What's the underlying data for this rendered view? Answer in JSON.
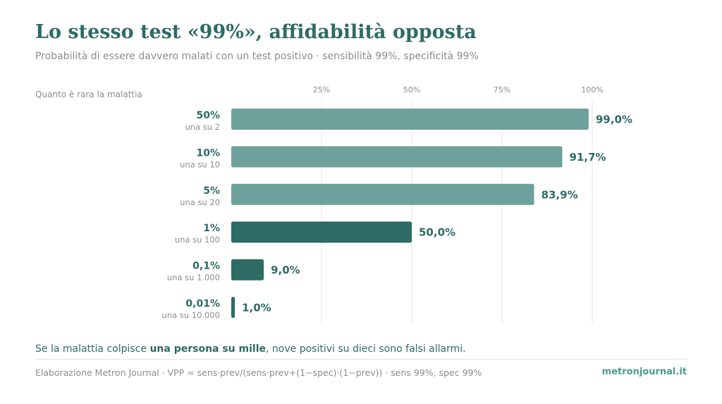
{
  "title": "Lo stesso test «99%», affidabilità opposta",
  "subtitle": "Probabilità di essere davvero malati con un test positivo · sensibilità 99%, specificità 99%",
  "callout": {
    "prefix": "Se la malattia colpisce ",
    "emphasis": "una persona su mille",
    "suffix": ", nove positivi su dieci sono falsi allarmi."
  },
  "footer": {
    "note": "Elaborazione Metron Journal · VPP = sens·prev/(sens·prev+(1−spec)·(1−prev)) · sens 99%, spec 99%",
    "brand": "metronjournal.it"
  },
  "colors": {
    "light_bar": "#6fa19c",
    "dark_bar": "#2e6b64",
    "title": "#2e6b64",
    "muted": "#8c8c8c",
    "grid": "#e6e6e6"
  },
  "chart_data": {
    "type": "bar",
    "orientation": "horizontal",
    "ylabel": "Quanto è rara la malattia",
    "xlim": [
      0,
      100
    ],
    "x_ticks": [
      25,
      50,
      75,
      100
    ],
    "x_tick_labels": [
      "25%",
      "50%",
      "75%",
      "100%"
    ],
    "grid": true,
    "categories": [
      {
        "label": "50%",
        "sublabel": "una su 2",
        "value": 99.0,
        "value_label": "99,0%",
        "highlight": false
      },
      {
        "label": "10%",
        "sublabel": "una su 10",
        "value": 91.7,
        "value_label": "91,7%",
        "highlight": false
      },
      {
        "label": "5%",
        "sublabel": "una su 20",
        "value": 83.9,
        "value_label": "83,9%",
        "highlight": false
      },
      {
        "label": "1%",
        "sublabel": "una su 100",
        "value": 50.0,
        "value_label": "50,0%",
        "highlight": true
      },
      {
        "label": "0,1%",
        "sublabel": "una su 1.000",
        "value": 9.0,
        "value_label": "9,0%",
        "highlight": true
      },
      {
        "label": "0,01%",
        "sublabel": "una su 10.000",
        "value": 1.0,
        "value_label": "1,0%",
        "highlight": true
      }
    ]
  }
}
